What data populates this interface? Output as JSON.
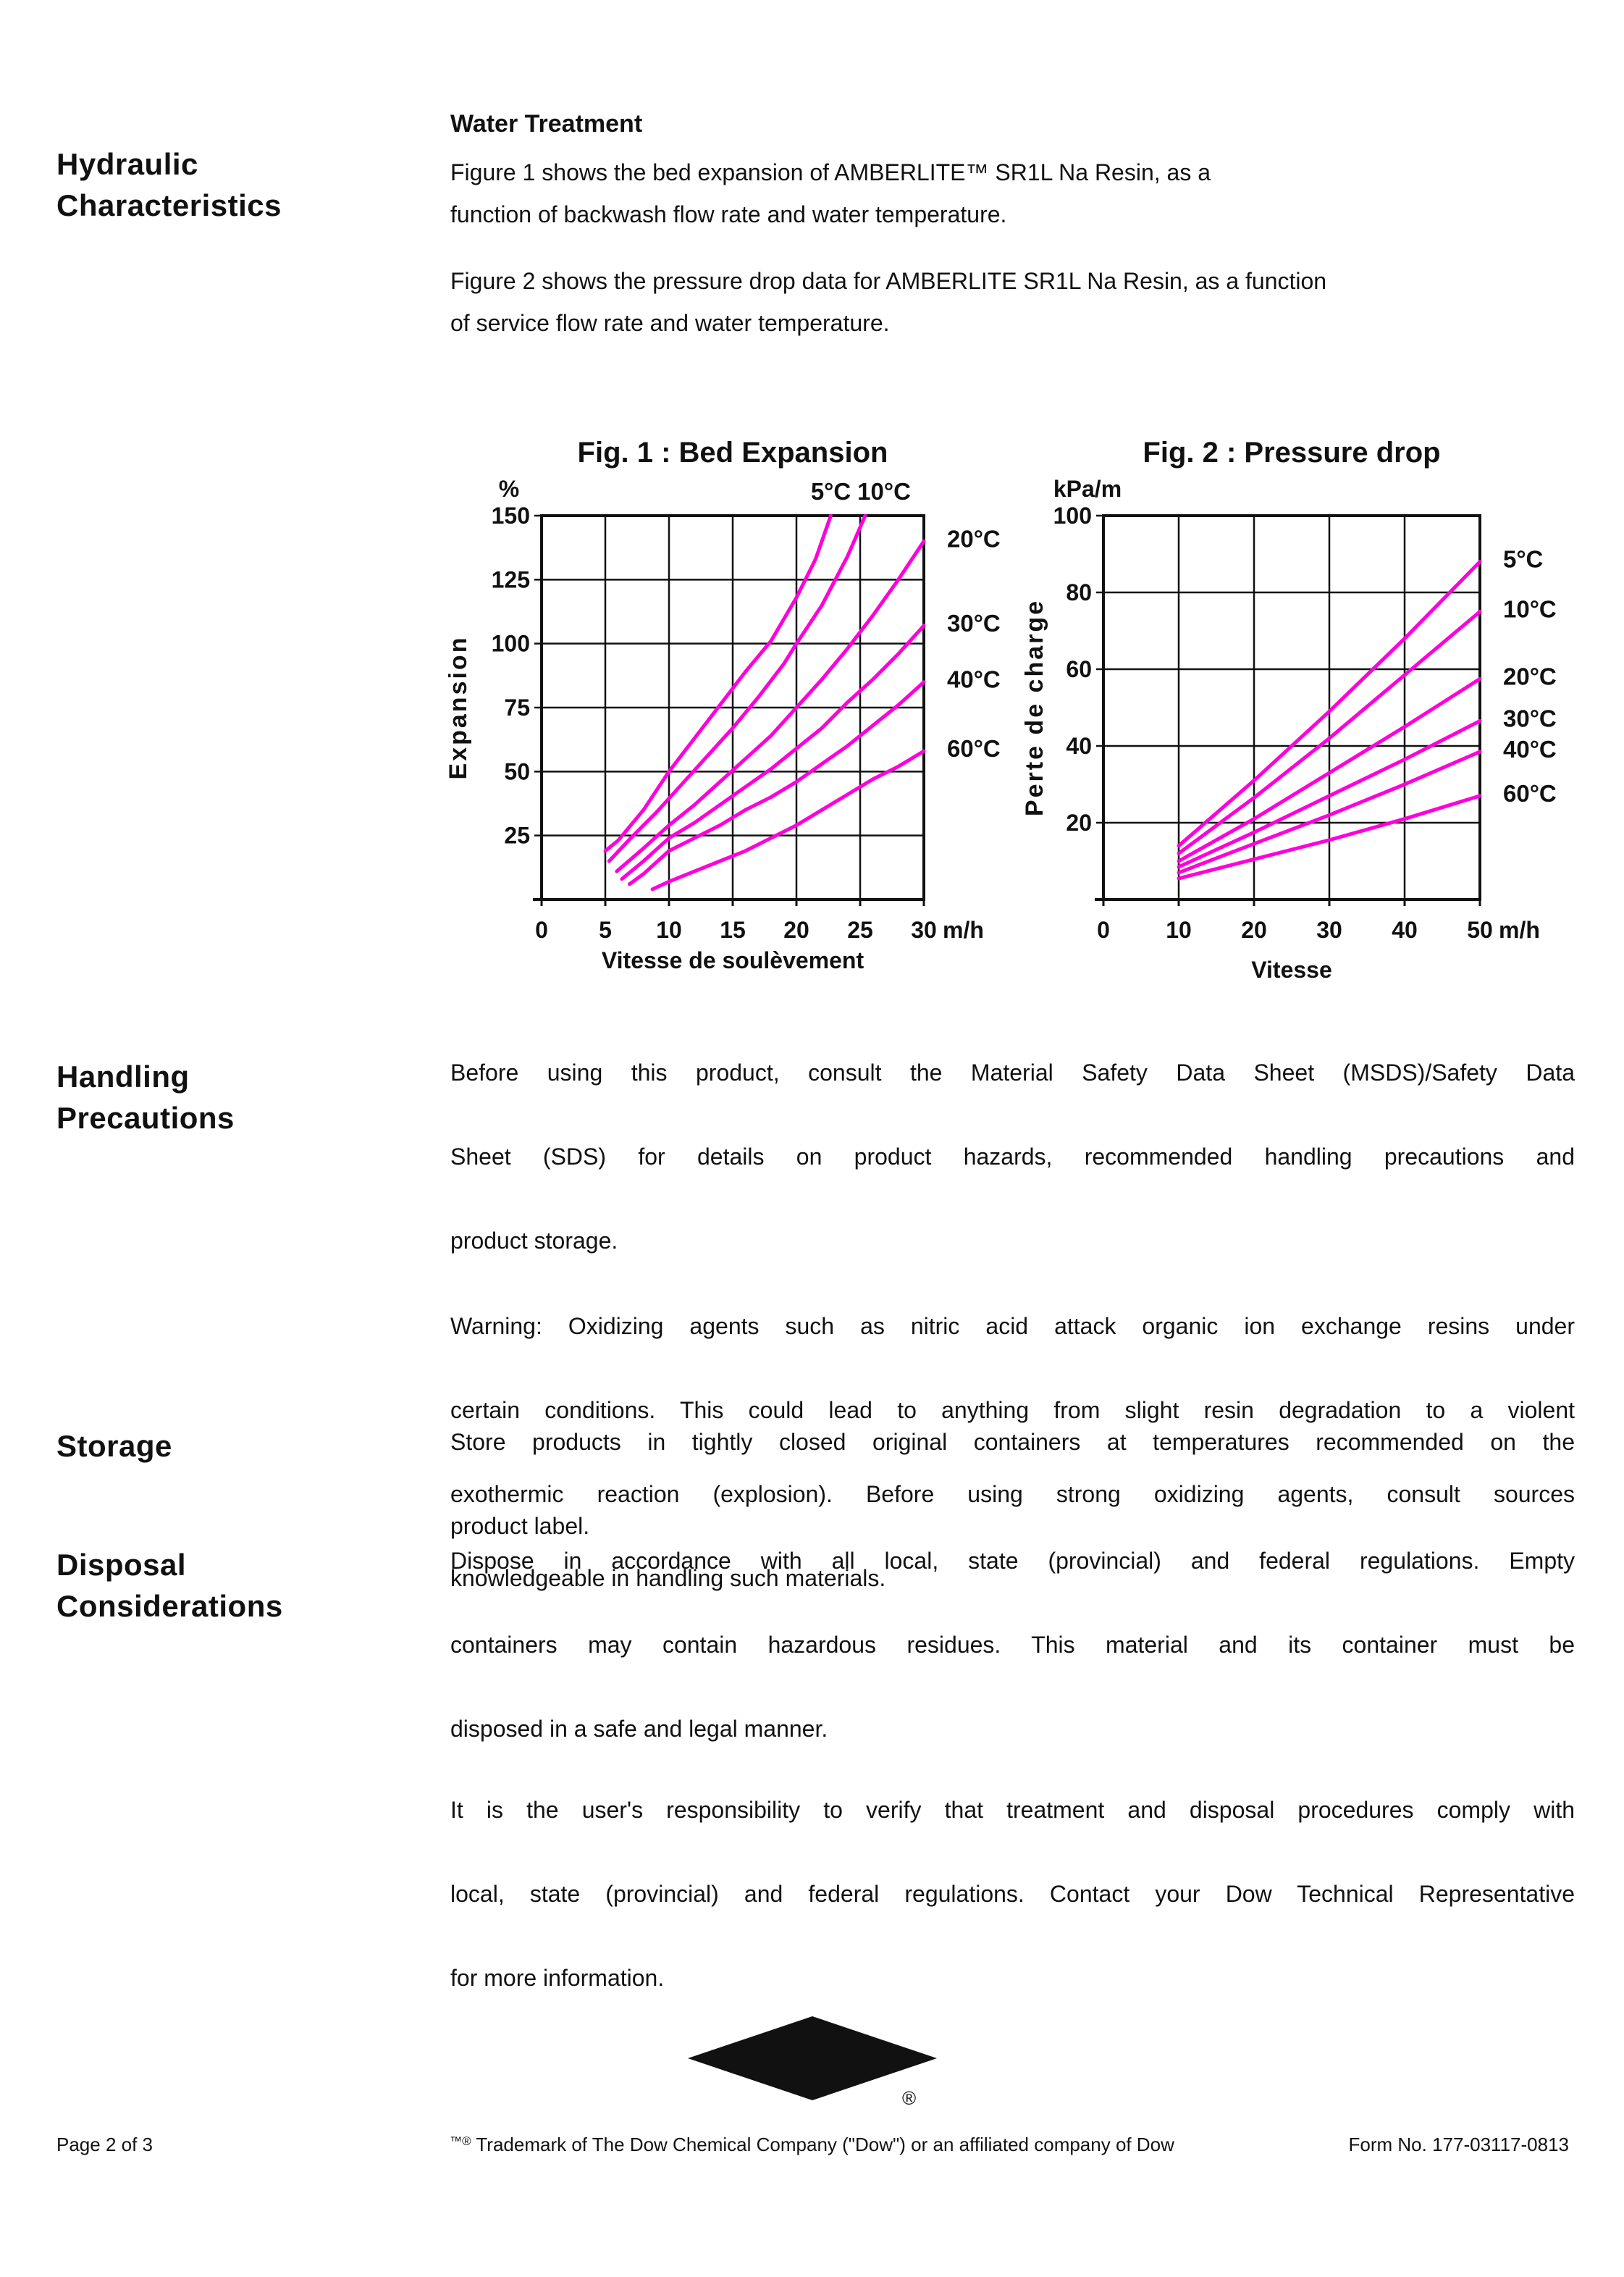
{
  "sections": {
    "hydraulic": {
      "line1": "Hydraulic",
      "line2": "Characteristics"
    },
    "water_treatment": {
      "heading": "Water Treatment",
      "para1": "Figure 1 shows the bed expansion of AMBERLITE™ SR1L Na Resin, as a\nfunction of backwash flow rate and water temperature.",
      "para2": "Figure 2 shows the pressure drop data for AMBERLITE SR1L Na Resin, as a function\nof service flow rate and water temperature."
    },
    "handling": {
      "line1": "Handling",
      "line2": "Precautions",
      "para1": "Before using this product, consult the Material Safety Data Sheet (MSDS)/Safety Data\nSheet (SDS) for details on product hazards, recommended handling precautions and\nproduct storage.",
      "para2": "Warning:  Oxidizing agents such as nitric acid attack organic ion exchange resins under\ncertain conditions. This could lead to anything from slight resin degradation to a violent\nexothermic reaction (explosion). Before using strong oxidizing agents, consult sources\nknowledgeable in handling such materials."
    },
    "storage": {
      "heading": "Storage",
      "para1": "Store products in tightly closed original containers at temperatures recommended on the\nproduct label."
    },
    "disposal": {
      "line1": "Disposal",
      "line2": "Considerations",
      "para1": "Dispose in accordance with all local, state (provincial) and federal regulations. Empty\ncontainers may contain hazardous residues. This material and its container must be\ndisposed in a safe and legal manner.",
      "para2": "It is the user's responsibility to verify that treatment and disposal procedures comply with\nlocal, state (provincial) and federal regulations. Contact your Dow Technical Representative\nfor more information."
    }
  },
  "logo": {
    "text": "Dow",
    "registered": "®"
  },
  "footer": {
    "page": "Page 2 of 3",
    "trademark_sup": "™®",
    "trademark_text": " Trademark of The Dow Chemical Company (\"Dow\") or an affiliated company of Dow",
    "form": "Form No. 177-03117-0813"
  },
  "chart_data": [
    {
      "type": "line",
      "title": "Fig. 1 : Bed Expansion",
      "xlabel": "Vitesse de soulèvement",
      "ylabel": "Expansion",
      "x_unit": "m/h",
      "y_unit": "%",
      "xlim": [
        0,
        30
      ],
      "ylim": [
        0,
        150
      ],
      "xticks": [
        0,
        5,
        10,
        15,
        20,
        25,
        30
      ],
      "yticks": [
        25,
        50,
        75,
        100,
        125,
        150
      ],
      "grid": true,
      "legend_position": "right-and-top",
      "line_color": "#FF00DC",
      "series": [
        {
          "name": "5°C",
          "points": [
            [
              5,
              19
            ],
            [
              6,
              23
            ],
            [
              8,
              35
            ],
            [
              10,
              50
            ],
            [
              12,
              63
            ],
            [
              14,
              76
            ],
            [
              16,
              89
            ],
            [
              18,
              101
            ],
            [
              20,
              118
            ],
            [
              21.5,
              133
            ],
            [
              22.7,
              150
            ]
          ]
        },
        {
          "name": "10°C",
          "points": [
            [
              5.3,
              15
            ],
            [
              7,
              24
            ],
            [
              9,
              34
            ],
            [
              11,
              45
            ],
            [
              13,
              56
            ],
            [
              15,
              67
            ],
            [
              17,
              79
            ],
            [
              19,
              92
            ],
            [
              20,
              100
            ],
            [
              22,
              115
            ],
            [
              24,
              134
            ],
            [
              25.4,
              150
            ]
          ]
        },
        {
          "name": "20°C",
          "points": [
            [
              5.9,
              11
            ],
            [
              8,
              20
            ],
            [
              10,
              29
            ],
            [
              12,
              37
            ],
            [
              14,
              46
            ],
            [
              16,
              55
            ],
            [
              18,
              64
            ],
            [
              20,
              75
            ],
            [
              22,
              86
            ],
            [
              24,
              98
            ],
            [
              26,
              111
            ],
            [
              28,
              125
            ],
            [
              30,
              140
            ]
          ]
        },
        {
          "name": "30°C",
          "points": [
            [
              6.3,
              8
            ],
            [
              8,
              15
            ],
            [
              10,
              24
            ],
            [
              12,
              30
            ],
            [
              14,
              37
            ],
            [
              16,
              44
            ],
            [
              18,
              51
            ],
            [
              20,
              59
            ],
            [
              22,
              67
            ],
            [
              24,
              77
            ],
            [
              26,
              86
            ],
            [
              28,
              96
            ],
            [
              30,
              107
            ]
          ]
        },
        {
          "name": "40°C",
          "points": [
            [
              6.9,
              6
            ],
            [
              8,
              10
            ],
            [
              10,
              19
            ],
            [
              12,
              24
            ],
            [
              14,
              29
            ],
            [
              16,
              35
            ],
            [
              18,
              40
            ],
            [
              20,
              46
            ],
            [
              22,
              53
            ],
            [
              24,
              60
            ],
            [
              26,
              68
            ],
            [
              28,
              76
            ],
            [
              30,
              85
            ]
          ]
        },
        {
          "name": "60°C",
          "points": [
            [
              8.7,
              4
            ],
            [
              10,
              7
            ],
            [
              12,
              11
            ],
            [
              14,
              15
            ],
            [
              16,
              19
            ],
            [
              18,
              24
            ],
            [
              20,
              29
            ],
            [
              22,
              35
            ],
            [
              24,
              41
            ],
            [
              26,
              47
            ],
            [
              28,
              52
            ],
            [
              30,
              58
            ]
          ]
        }
      ]
    },
    {
      "type": "line",
      "title": "Fig. 2 : Pressure drop",
      "xlabel": "Vitesse",
      "ylabel": "Perte de charge",
      "x_unit": "m/h",
      "y_unit": "kPa/m",
      "xlim": [
        0,
        50
      ],
      "ylim": [
        0,
        100
      ],
      "xticks": [
        0,
        10,
        20,
        30,
        40,
        50
      ],
      "yticks": [
        20,
        40,
        60,
        80,
        100
      ],
      "grid": true,
      "legend_position": "right",
      "line_color": "#FF00DC",
      "series": [
        {
          "name": "5°C",
          "points": [
            [
              10,
              14
            ],
            [
              20,
              31
            ],
            [
              30,
              49
            ],
            [
              40,
              68
            ],
            [
              50,
              88
            ]
          ]
        },
        {
          "name": "10°C",
          "points": [
            [
              10,
              12
            ],
            [
              20,
              26.5
            ],
            [
              30,
              42
            ],
            [
              40,
              58.5
            ],
            [
              50,
              75
            ]
          ]
        },
        {
          "name": "20°C",
          "points": [
            [
              10,
              10
            ],
            [
              20,
              21
            ],
            [
              30,
              33
            ],
            [
              40,
              45
            ],
            [
              50,
              57.5
            ]
          ]
        },
        {
          "name": "30°C",
          "points": [
            [
              10,
              8.5
            ],
            [
              20,
              17.5
            ],
            [
              30,
              27
            ],
            [
              40,
              36.5
            ],
            [
              50,
              46.5
            ]
          ]
        },
        {
          "name": "40°C",
          "points": [
            [
              10,
              7
            ],
            [
              20,
              14.5
            ],
            [
              30,
              22
            ],
            [
              40,
              30
            ],
            [
              50,
              38.5
            ]
          ]
        },
        {
          "name": "60°C",
          "points": [
            [
              10,
              5.5
            ],
            [
              20,
              10.5
            ],
            [
              30,
              15.5
            ],
            [
              40,
              21
            ],
            [
              50,
              27
            ]
          ]
        }
      ]
    }
  ]
}
